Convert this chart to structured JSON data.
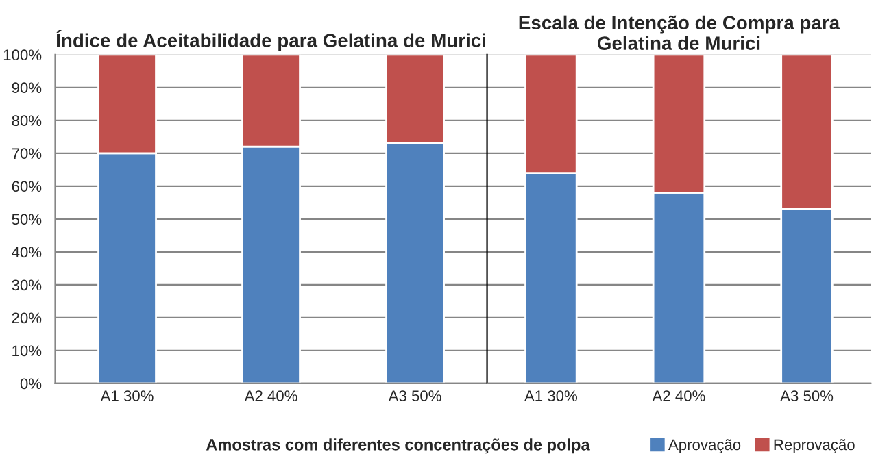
{
  "chart_data": [
    {
      "type": "bar",
      "title": "Índice de Aceitabilidade para Gelatina de Murici",
      "xlabel": "Amostras com diferentes concentrações de polpa",
      "stacked": true,
      "categories": [
        "A1 30%",
        "A2 40%",
        "A3 50%"
      ],
      "series": [
        {
          "color": "#4f81bd",
          "values": [
            70,
            72,
            73
          ]
        },
        {
          "color": "#c0504d",
          "values": [
            30,
            28,
            27
          ]
        }
      ],
      "ylim": [
        0,
        100
      ],
      "yticks": [
        {
          "value": 0,
          "label": "0%"
        },
        {
          "value": 10,
          "label": "10%"
        },
        {
          "value": 20,
          "label": "20%"
        },
        {
          "value": 30,
          "label": "30%"
        },
        {
          "value": 40,
          "label": "40%"
        },
        {
          "value": 50,
          "label": "50%"
        },
        {
          "value": 60,
          "label": "60%"
        },
        {
          "value": 70,
          "label": "70%"
        },
        {
          "value": 80,
          "label": "80%"
        },
        {
          "value": 90,
          "label": "90%"
        },
        {
          "value": 100,
          "label": "100%"
        }
      ],
      "grid": "y"
    },
    {
      "type": "bar",
      "title": "Escala de Intenção de Compra para Gelatina de Murici",
      "stacked": true,
      "categories": [
        "A1 30%",
        "A2 40%",
        "A3 50%"
      ],
      "series": [
        {
          "name": "Aprovação",
          "color": "#4f81bd",
          "values": [
            64,
            58,
            53
          ]
        },
        {
          "name": "Reprovação",
          "color": "#c0504d",
          "values": [
            36,
            42,
            47
          ]
        }
      ],
      "ylim": [
        0,
        100
      ],
      "yticks": [
        0,
        10,
        20,
        30,
        40,
        50,
        60,
        70,
        80,
        90,
        100
      ],
      "tick_labels": "x",
      "grid": "y",
      "legend": "bottom right"
    }
  ]
}
